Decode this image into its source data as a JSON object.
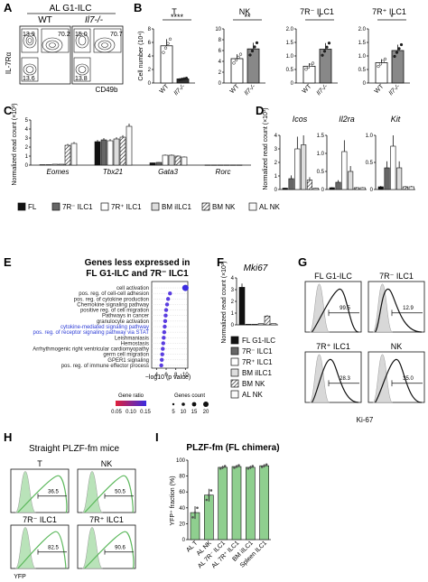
{
  "panels": {
    "A": {
      "letter": "A",
      "header": "AL G1-ILC",
      "col_labels": [
        "WT",
        "Il7-/-"
      ],
      "y_axis": "IL-7Rα",
      "x_axis": "CD49b",
      "wt": {
        "tl": "13.9",
        "tr": "70.2",
        "bl": "13.6"
      },
      "ko": {
        "tl": "15.0",
        "tr": "70.7",
        "bl": "13.8"
      }
    },
    "B": {
      "letter": "B",
      "ylabel": "Cell number (10⁴)",
      "xlabels": [
        "WT",
        "Il7-/-"
      ],
      "charts": [
        {
          "title": "T",
          "sig": "****",
          "ticks": [
            "0",
            "2",
            "4",
            "6",
            "8"
          ],
          "ylim": [
            0,
            8
          ],
          "wt": 5.5,
          "ko": 0.6,
          "fill_ko": "#333333"
        },
        {
          "title": "NK",
          "sig": "**",
          "ticks": [
            "0",
            "2",
            "4",
            "6",
            "8",
            "10"
          ],
          "ylim": [
            0,
            10
          ],
          "wt": 4.5,
          "ko": 6.3,
          "fill_ko": "#888888"
        },
        {
          "title": "7R⁻ ILC1",
          "sig": "*",
          "ticks": [
            "0",
            "0.5",
            "1.0",
            "1.5",
            "2.0"
          ],
          "ylim": [
            0,
            2
          ],
          "wt": 0.62,
          "ko": 1.25,
          "fill_ko": "#888888"
        },
        {
          "title": "7R⁺ ILC1",
          "sig": "*",
          "ticks": [
            "0",
            "0.5",
            "1.0",
            "1.5",
            "2.0"
          ],
          "ylim": [
            0,
            2
          ],
          "wt": 0.75,
          "ko": 1.2,
          "fill_ko": "#888888"
        }
      ]
    },
    "C": {
      "letter": "C",
      "ylabel": "Normalized read count (×10³)",
      "ticks": [
        "0",
        "1",
        "2",
        "3",
        "4",
        "5"
      ],
      "chart_data": {
        "type": "bar",
        "categories": [
          "Eomes",
          "Tbx21",
          "Gata3",
          "Rorc"
        ],
        "ylim": [
          0,
          5
        ],
        "series": [
          {
            "name": "FL",
            "values": [
              0.05,
              2.6,
              0.25,
              0.02
            ]
          },
          {
            "name": "7R⁻ ILC1",
            "values": [
              0.05,
              2.8,
              0.3,
              0.02
            ]
          },
          {
            "name": "7R⁺ ILC1",
            "values": [
              0.1,
              2.7,
              1.1,
              0.02
            ]
          },
          {
            "name": "BM iILC1",
            "values": [
              0.1,
              2.9,
              1.1,
              0.02
            ]
          },
          {
            "name": "BM NK",
            "values": [
              2.2,
              3.1,
              1.0,
              0.02
            ]
          },
          {
            "name": "AL NK",
            "values": [
              2.4,
              4.3,
              0.9,
              0.02
            ]
          }
        ]
      }
    },
    "D": {
      "letter": "D",
      "ylabel": "Normalized read count (×10³)",
      "genes": [
        {
          "name": "Icos",
          "ticks": [
            "0",
            "1",
            "2",
            "3",
            "4"
          ],
          "ylim": [
            0,
            4
          ],
          "values": [
            0.1,
            0.8,
            3.0,
            3.3,
            0.7,
            0.1
          ]
        },
        {
          "name": "Il2ra",
          "ticks": [
            "0",
            "0.5",
            "1.0",
            "1.5"
          ],
          "ylim": [
            0,
            1.5
          ],
          "values": [
            0.05,
            0.2,
            1.05,
            0.5,
            0.05,
            0.05
          ]
        },
        {
          "name": "Kit",
          "ticks": [
            "0",
            "0.5",
            "1.0"
          ],
          "ylim": [
            0,
            1.0
          ],
          "values": [
            0.05,
            0.4,
            0.8,
            0.4,
            0.05,
            0.05
          ]
        }
      ]
    },
    "legendCD": {
      "items": [
        {
          "label": "FL",
          "style": "black"
        },
        {
          "label": "7R⁻ ILC1",
          "style": "dgray"
        },
        {
          "label": "7R⁺ ILC1",
          "style": "white"
        },
        {
          "label": "BM iILC1",
          "style": "lgray"
        },
        {
          "label": "BM NK",
          "style": "hatch"
        },
        {
          "label": "AL NK",
          "style": "white2"
        }
      ]
    },
    "E": {
      "letter": "E",
      "title1": "Genes less expressed in",
      "title2": "FL G1-ILC and 7R⁻ ILC1",
      "xlabel": "−log10 (p value)",
      "xticks": [
        "4",
        "6",
        "8",
        "10"
      ],
      "terms": [
        {
          "label": "cell activation",
          "x": 10.0,
          "blue": false
        },
        {
          "label": "pos. reg. of cell-cell adhesion",
          "x": 6.8,
          "blue": false
        },
        {
          "label": "pos. reg. of cytokine production",
          "x": 6.4,
          "blue": false
        },
        {
          "label": "Chemokine signaling pathway",
          "x": 6.2,
          "blue": false
        },
        {
          "label": "positive reg. of cell migration",
          "x": 6.0,
          "blue": false
        },
        {
          "label": "Pathways in cancer",
          "x": 5.9,
          "blue": false
        },
        {
          "label": "granulocyte activation",
          "x": 5.8,
          "blue": false
        },
        {
          "label": "cytokine-mediated signaling pathway",
          "x": 5.7,
          "blue": true
        },
        {
          "label": "pos. reg. of receptor signaling pathway via STAT",
          "x": 5.6,
          "blue": true
        },
        {
          "label": "Leishmaniasis",
          "x": 5.5,
          "blue": false
        },
        {
          "label": "Hemostasis",
          "x": 5.4,
          "blue": false
        },
        {
          "label": "Arrhythmogenic right ventricular cardiomyopathy",
          "x": 5.3,
          "blue": false
        },
        {
          "label": "germ cell migration",
          "x": 5.2,
          "blue": false
        },
        {
          "label": "GPER1 signaling",
          "x": 5.1,
          "blue": false
        },
        {
          "label": "pos. reg. of immune effector process",
          "x": 5.0,
          "blue": false
        }
      ],
      "legend_ratio_title": "Gene ratio",
      "legend_ratio_ticks": [
        "0.05",
        "0.10",
        "0.15"
      ],
      "legend_count_title": "Genes count",
      "legend_count_ticks": [
        "5",
        "10",
        "15",
        "20"
      ]
    },
    "F": {
      "letter": "F",
      "gene": "Mki67",
      "ylabel": "Normalized read count (×10³)",
      "ticks": [
        "0",
        "1",
        "2",
        "3",
        "4"
      ],
      "ylim": [
        0,
        4
      ],
      "values": [
        3.2,
        0.05,
        0.05,
        0.1,
        0.75,
        0.1
      ],
      "legend": [
        "FL G1-ILC",
        "7R⁻ ILC1",
        "7R⁺ ILC1",
        "BM iILC1",
        "BM NK",
        "AL NK"
      ]
    },
    "G": {
      "letter": "G",
      "cells": [
        {
          "title": "FL G1-ILC",
          "value": "99.5"
        },
        {
          "title": "7R⁻ ILC1",
          "value": "12.9"
        },
        {
          "title": "7R⁺ ILC1",
          "value": "28.3"
        },
        {
          "title": "NK",
          "value": "35.0"
        }
      ],
      "xlabel": "Ki-67"
    },
    "H": {
      "letter": "H",
      "title": "Straight PLZF-fm mice",
      "cells": [
        {
          "title": "T",
          "value": "36.5"
        },
        {
          "title": "NK",
          "value": "50.5"
        },
        {
          "title": "7R⁻ ILC1",
          "value": "82.5"
        },
        {
          "title": "7R⁺ ILC1",
          "value": "90.6"
        }
      ],
      "xlabel": "YFP"
    },
    "I": {
      "letter": "I",
      "title": "PLZF-fm (FL chimera)",
      "ylabel": "YFP⁺ fraction (%)",
      "ticks": [
        "0",
        "20",
        "40",
        "60",
        "80",
        "100"
      ],
      "chart_data": {
        "type": "bar",
        "categories": [
          "AL T",
          "AL NK",
          "AL 7R⁻ ILC1",
          "AL 7R⁺ ILC1",
          "BM iILC1",
          "Spleen ILC1"
        ],
        "values": [
          34,
          56,
          91,
          92,
          91,
          93
        ],
        "ylim": [
          0,
          100
        ],
        "color": "#8fcf8f"
      }
    }
  }
}
